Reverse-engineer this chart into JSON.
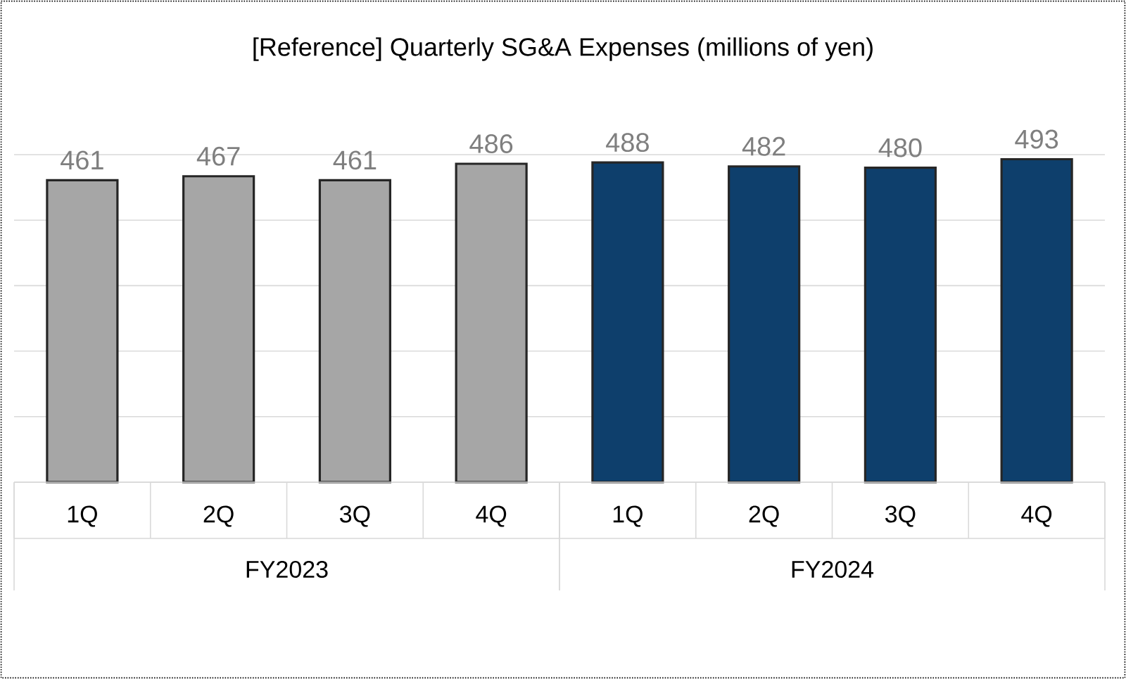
{
  "chart_data": {
    "type": "bar",
    "title": "[Reference] Quarterly SG&A Expenses (millions of yen)",
    "categories": [
      "1Q",
      "2Q",
      "3Q",
      "4Q",
      "1Q",
      "2Q",
      "3Q",
      "4Q"
    ],
    "values": [
      461,
      467,
      461,
      486,
      488,
      482,
      480,
      493
    ],
    "colors": [
      "#a6a6a6",
      "#a6a6a6",
      "#a6a6a6",
      "#a6a6a6",
      "#0e3f6c",
      "#0e3f6c",
      "#0e3f6c",
      "#0e3f6c"
    ],
    "annotations": [
      "FY2023",
      "FY2024"
    ],
    "ylim": [
      0,
      500
    ],
    "yticks": [
      {
        "value": 0,
        "label": null
      },
      {
        "value": 100,
        "label": null
      },
      {
        "value": 200,
        "label": null
      },
      {
        "value": 300,
        "label": null
      },
      {
        "value": 400,
        "label": null
      },
      {
        "value": 500,
        "label": null
      }
    ],
    "grid": "y",
    "data_labels": true,
    "tick_labels": "x"
  }
}
